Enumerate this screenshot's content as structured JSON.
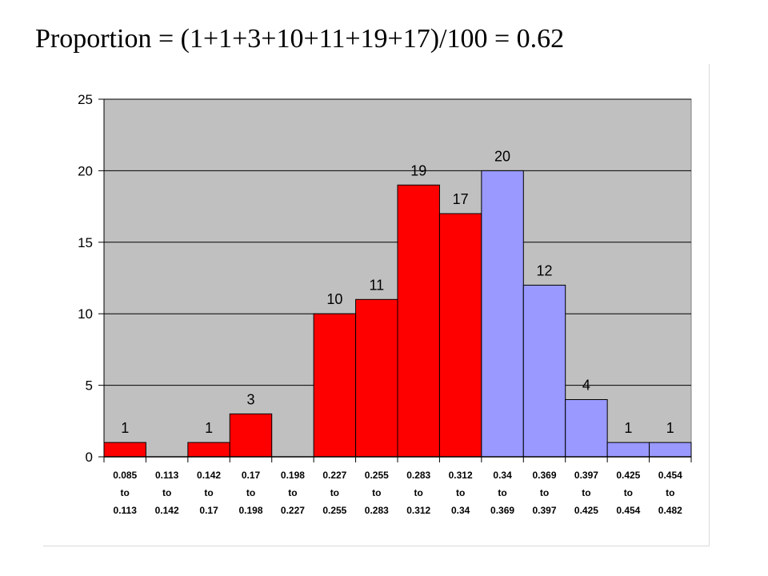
{
  "title": "Proportion = (1+1+3+10+11+19+17)/100 = 0.62",
  "chart_data": {
    "type": "bar",
    "title": "",
    "xlabel": "",
    "ylabel": "",
    "ylim": [
      0,
      25
    ],
    "yticks": [
      0,
      5,
      10,
      15,
      20,
      25
    ],
    "grid": true,
    "legend": "none",
    "categories": [
      [
        "0.085",
        "to",
        "0.113"
      ],
      [
        "0.113",
        "to",
        "0.142"
      ],
      [
        "0.142",
        "to",
        "0.17"
      ],
      [
        "0.17",
        "to",
        "0.198"
      ],
      [
        "0.198",
        "to",
        "0.227"
      ],
      [
        "0.227",
        "to",
        "0.255"
      ],
      [
        "0.255",
        "to",
        "0.283"
      ],
      [
        "0.283",
        "to",
        "0.312"
      ],
      [
        "0.312",
        "to",
        "0.34"
      ],
      [
        "0.34",
        "to",
        "0.369"
      ],
      [
        "0.369",
        "to",
        "0.397"
      ],
      [
        "0.397",
        "to",
        "0.425"
      ],
      [
        "0.425",
        "to",
        "0.454"
      ],
      [
        "0.454",
        "to",
        "0.482"
      ]
    ],
    "values": [
      1,
      0,
      1,
      3,
      0,
      10,
      11,
      19,
      17,
      20,
      12,
      4,
      1,
      1
    ],
    "colors": [
      "#ff0000",
      "#ff0000",
      "#ff0000",
      "#ff0000",
      "#ff0000",
      "#ff0000",
      "#ff0000",
      "#ff0000",
      "#ff0000",
      "#9999ff",
      "#9999ff",
      "#9999ff",
      "#9999ff",
      "#9999ff"
    ],
    "plot_background": "#c0c0c0",
    "bar_edge_color": "#000000"
  }
}
